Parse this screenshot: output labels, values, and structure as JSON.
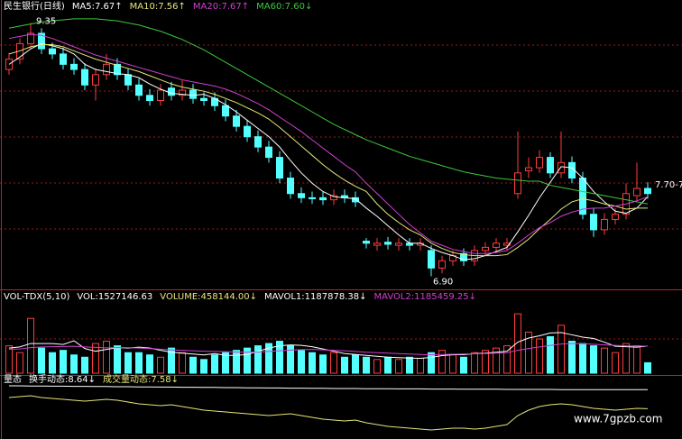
{
  "chart_data": [
    {
      "type": "candlestick",
      "title": "民生银行(日线)",
      "ylim": [
        6.8,
        9.45
      ],
      "grid": true,
      "up_color": "#ff3c3c",
      "down_color": "#54ffff",
      "open": [
        8.9,
        9.0,
        9.15,
        9.25,
        9.1,
        9.05,
        8.95,
        8.9,
        8.75,
        8.85,
        8.95,
        8.85,
        8.75,
        8.65,
        8.6,
        8.72,
        8.65,
        8.7,
        8.62,
        8.62,
        8.55,
        8.45,
        8.35,
        8.25,
        8.15,
        8.05,
        7.85,
        7.7,
        7.66,
        7.66,
        7.64,
        7.68,
        7.66,
        7.24,
        7.2,
        7.23,
        7.2,
        7.22,
        7.2,
        7.15,
        6.98,
        7.05,
        7.12,
        7.05,
        7.15,
        7.18,
        7.2,
        7.7,
        7.92,
        7.95,
        8.05,
        7.9,
        8.0,
        7.85,
        7.5,
        7.35,
        7.45,
        7.5,
        7.68,
        7.75
      ],
      "high": [
        9.06,
        9.2,
        9.35,
        9.3,
        9.16,
        9.11,
        9.01,
        8.96,
        8.91,
        9.05,
        9.01,
        8.91,
        8.81,
        8.71,
        8.76,
        8.78,
        8.8,
        8.76,
        8.68,
        8.68,
        8.61,
        8.51,
        8.41,
        8.31,
        8.21,
        8.11,
        7.91,
        7.76,
        7.72,
        7.72,
        7.74,
        7.74,
        7.72,
        7.27,
        7.27,
        7.28,
        7.27,
        7.27,
        7.27,
        7.2,
        7.1,
        7.15,
        7.17,
        7.2,
        7.23,
        7.27,
        7.27,
        8.3,
        8.05,
        8.12,
        8.1,
        8.3,
        8.06,
        7.91,
        7.56,
        7.51,
        7.56,
        7.8,
        8.0,
        7.81
      ],
      "low": [
        8.85,
        8.95,
        9.1,
        9.05,
        9.0,
        8.9,
        8.85,
        8.7,
        8.6,
        8.8,
        8.8,
        8.7,
        8.6,
        8.55,
        8.55,
        8.6,
        8.6,
        8.57,
        8.55,
        8.5,
        8.4,
        8.3,
        8.2,
        8.1,
        8.0,
        7.8,
        7.65,
        7.61,
        7.6,
        7.59,
        7.59,
        7.61,
        7.57,
        7.17,
        7.15,
        7.16,
        7.15,
        7.15,
        7.15,
        6.9,
        6.93,
        7.0,
        7.0,
        7.0,
        7.1,
        7.13,
        7.15,
        7.65,
        7.85,
        7.9,
        7.85,
        7.85,
        7.8,
        7.45,
        7.28,
        7.3,
        7.4,
        7.45,
        7.63,
        7.65
      ],
      "close": [
        9.0,
        9.15,
        9.25,
        9.1,
        9.05,
        8.95,
        8.9,
        8.75,
        8.85,
        8.95,
        8.85,
        8.75,
        8.65,
        8.6,
        8.7,
        8.65,
        8.7,
        8.62,
        8.6,
        8.55,
        8.45,
        8.35,
        8.25,
        8.15,
        8.05,
        7.85,
        7.7,
        7.66,
        7.65,
        7.64,
        7.68,
        7.66,
        7.62,
        7.22,
        7.22,
        7.21,
        7.22,
        7.2,
        7.22,
        6.98,
        7.05,
        7.1,
        7.05,
        7.15,
        7.18,
        7.22,
        7.22,
        7.9,
        7.95,
        8.05,
        7.9,
        8.0,
        7.85,
        7.5,
        7.35,
        7.45,
        7.5,
        7.7,
        7.75,
        7.7
      ],
      "series": [
        {
          "name": "MA5:7.67↑",
          "color": "#ffffff",
          "values": [
            8.95,
            9.02,
            9.1,
            9.15,
            9.13,
            9.1,
            9.05,
            8.95,
            8.9,
            8.88,
            8.86,
            8.85,
            8.82,
            8.76,
            8.71,
            8.67,
            8.66,
            8.65,
            8.66,
            8.62,
            8.56,
            8.49,
            8.41,
            8.33,
            8.25,
            8.15,
            8.02,
            7.9,
            7.8,
            7.72,
            7.67,
            7.66,
            7.65,
            7.56,
            7.48,
            7.39,
            7.3,
            7.22,
            7.22,
            7.17,
            7.13,
            7.1,
            7.06,
            7.07,
            7.1,
            7.14,
            7.18,
            7.33,
            7.49,
            7.66,
            7.81,
            7.96,
            7.95,
            7.85,
            7.72,
            7.62,
            7.53,
            7.51,
            7.56,
            7.67
          ]
        },
        {
          "name": "MA10:7.56↑",
          "color": "#e6e67a",
          "values": [
            9.05,
            9.08,
            9.12,
            9.14,
            9.14,
            9.12,
            9.08,
            9.04,
            9.0,
            8.97,
            8.94,
            8.91,
            8.88,
            8.84,
            8.8,
            8.76,
            8.73,
            8.71,
            8.69,
            8.66,
            8.62,
            8.58,
            8.53,
            8.48,
            8.42,
            8.34,
            8.25,
            8.16,
            8.07,
            7.98,
            7.9,
            7.83,
            7.77,
            7.72,
            7.6,
            7.5,
            7.42,
            7.35,
            7.3,
            7.22,
            7.17,
            7.13,
            7.11,
            7.1,
            7.1,
            7.1,
            7.11,
            7.18,
            7.26,
            7.36,
            7.45,
            7.55,
            7.62,
            7.65,
            7.63,
            7.6,
            7.58,
            7.55,
            7.56,
            7.56
          ]
        },
        {
          "name": "MA20:7.67↑",
          "color": "#d040d0",
          "values": [
            9.2,
            9.22,
            9.24,
            9.23,
            9.2,
            9.16,
            9.12,
            9.08,
            9.04,
            9.01,
            8.98,
            8.95,
            8.92,
            8.89,
            8.86,
            8.83,
            8.8,
            8.78,
            8.76,
            8.74,
            8.71,
            8.67,
            8.62,
            8.57,
            8.51,
            8.44,
            8.37,
            8.3,
            8.22,
            8.14,
            8.06,
            7.98,
            7.91,
            7.8,
            7.7,
            7.6,
            7.5,
            7.4,
            7.32,
            7.24,
            7.2,
            7.16,
            7.14,
            7.12,
            7.12,
            7.13,
            7.15,
            7.22,
            7.3,
            7.37,
            7.42,
            7.48,
            7.52,
            7.55,
            7.56,
            7.56,
            7.58,
            7.6,
            7.63,
            7.67
          ]
        },
        {
          "name": "MA60:7.60↓",
          "color": "#3cc83c",
          "values": [
            9.3,
            9.32,
            9.34,
            9.36,
            9.37,
            9.38,
            9.39,
            9.39,
            9.39,
            9.38,
            9.37,
            9.35,
            9.33,
            9.3,
            9.27,
            9.23,
            9.19,
            9.14,
            9.09,
            9.03,
            8.97,
            8.91,
            8.85,
            8.79,
            8.73,
            8.67,
            8.61,
            8.55,
            8.49,
            8.43,
            8.37,
            8.32,
            8.27,
            8.22,
            8.18,
            8.14,
            8.1,
            8.06,
            8.03,
            8.0,
            7.97,
            7.94,
            7.91,
            7.89,
            7.87,
            7.85,
            7.84,
            7.83,
            7.82,
            7.82,
            7.78,
            7.76,
            7.74,
            7.72,
            7.7,
            7.68,
            7.66,
            7.64,
            7.62,
            7.6
          ]
        }
      ],
      "annotations": [
        {
          "text": "9.35"
        },
        {
          "text": "6.90"
        },
        {
          "text": "7.70-7."
        }
      ]
    },
    {
      "type": "bar",
      "title": "VOL-TDX(5,10)",
      "texts": [
        "VOL:1527146.63",
        "VOLUME:458144.00↓"
      ],
      "ylim": [
        0,
        3000000
      ],
      "values": [
        1200000,
        900000,
        2400000,
        1100000,
        900000,
        1000000,
        800000,
        700000,
        1300000,
        1400000,
        1200000,
        900000,
        900000,
        800000,
        700000,
        1100000,
        900000,
        700000,
        600000,
        800000,
        900000,
        1000000,
        1100000,
        1200000,
        1300000,
        1400000,
        1200000,
        1000000,
        900000,
        800000,
        900000,
        700000,
        800000,
        700000,
        600000,
        700000,
        600000,
        700000,
        650000,
        900000,
        1000000,
        800000,
        700000,
        900000,
        1000000,
        1100000,
        1200000,
        2600000,
        1800000,
        1500000,
        1600000,
        2100000,
        1400000,
        1300000,
        1200000,
        1100000,
        900000,
        1300000,
        1200000,
        458144
      ],
      "series": [
        {
          "name": "MAVOL1:1187878.38↓",
          "color": "#ffffff",
          "values": [
            1100000,
            1150000,
            1300000,
            1300000,
            1300000,
            1260000,
            1420000,
            1080000,
            960000,
            1040000,
            1120000,
            1100000,
            1140000,
            1100000,
            1000000,
            920000,
            880000,
            840000,
            800000,
            860000,
            780000,
            780000,
            820000,
            960000,
            1100000,
            1200000,
            1240000,
            1220000,
            1160000,
            1060000,
            960000,
            860000,
            820000,
            780000,
            740000,
            700000,
            680000,
            660000,
            650000,
            690000,
            770000,
            810000,
            810000,
            860000,
            880000,
            920000,
            960000,
            1360000,
            1540000,
            1640000,
            1760000,
            1780000,
            1680000,
            1580000,
            1520000,
            1360000,
            1180000,
            1160000,
            1140000,
            1187878.38
          ]
        },
        {
          "name": "MAVOL2:1185459.25↓",
          "color": "#d040d0",
          "values": [
            1050000,
            1060000,
            1120000,
            1150000,
            1160000,
            1170000,
            1180000,
            1150000,
            1130000,
            1110000,
            1120000,
            1120000,
            1100000,
            1080000,
            1050000,
            1020000,
            1000000,
            980000,
            960000,
            950000,
            940000,
            930000,
            920000,
            930000,
            950000,
            980000,
            1010000,
            1030000,
            1040000,
            1020000,
            1000000,
            980000,
            950000,
            920000,
            900000,
            880000,
            860000,
            840000,
            820000,
            810000,
            820000,
            830000,
            840000,
            850000,
            860000,
            880000,
            900000,
            1000000,
            1080000,
            1150000,
            1220000,
            1280000,
            1300000,
            1290000,
            1270000,
            1240000,
            1220000,
            1200000,
            1190000,
            1185459.25
          ]
        }
      ]
    },
    {
      "type": "line",
      "title": "量态",
      "ylim": [
        6,
        9
      ],
      "series": [
        {
          "name": "换手动态:8.64↓",
          "color": "#ffffff",
          "values": [
            8.85,
            8.85,
            8.84,
            8.84,
            8.83,
            8.83,
            8.82,
            8.82,
            8.81,
            8.81,
            8.8,
            8.8,
            8.79,
            8.79,
            8.78,
            8.78,
            8.77,
            8.77,
            8.76,
            8.76,
            8.75,
            8.75,
            8.74,
            8.74,
            8.73,
            8.73,
            8.72,
            8.72,
            8.71,
            8.71,
            8.7,
            8.7,
            8.7,
            8.69,
            8.69,
            8.69,
            8.68,
            8.68,
            8.68,
            8.67,
            8.67,
            8.67,
            8.66,
            8.66,
            8.66,
            8.66,
            8.65,
            8.65,
            8.65,
            8.65,
            8.65,
            8.64,
            8.64,
            8.64,
            8.64,
            8.64,
            8.64,
            8.64,
            8.64,
            8.64
          ]
        },
        {
          "name": "成交量动态:7.58↓",
          "color": "#e6e67a",
          "values": [
            8.2,
            8.25,
            8.3,
            8.2,
            8.15,
            8.1,
            8.05,
            8.0,
            8.05,
            8.1,
            8.05,
            7.95,
            7.85,
            7.8,
            7.75,
            7.8,
            7.7,
            7.6,
            7.5,
            7.45,
            7.4,
            7.35,
            7.3,
            7.25,
            7.2,
            7.25,
            7.3,
            7.2,
            7.1,
            7.0,
            6.95,
            6.9,
            6.95,
            6.8,
            6.7,
            6.6,
            6.55,
            6.5,
            6.45,
            6.4,
            6.45,
            6.5,
            6.5,
            6.45,
            6.5,
            6.6,
            6.7,
            7.2,
            7.5,
            7.7,
            7.8,
            7.85,
            7.8,
            7.7,
            7.6,
            7.55,
            7.5,
            7.55,
            7.6,
            7.58
          ]
        }
      ]
    }
  ],
  "watermark": "www.7gpzb.com"
}
